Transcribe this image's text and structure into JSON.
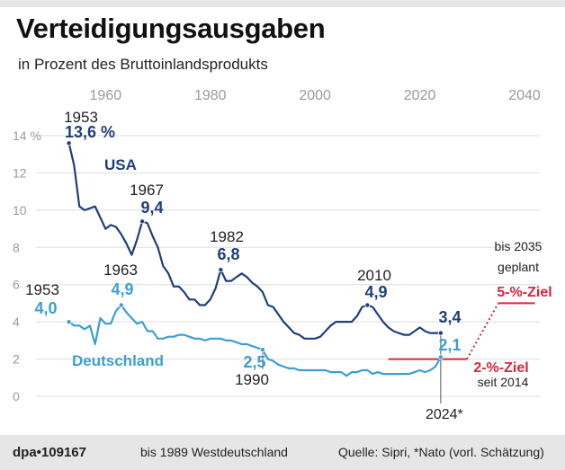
{
  "header": {
    "title": "Verteidigungsausgaben",
    "subtitle": "in Prozent des Bruttoinlandsprodukts"
  },
  "footer": {
    "brand": "dpa•109167",
    "note": "bis 1989 Westdeutschland",
    "source": "Quelle: Sipri, *Nato (vorl. Schätzung)"
  },
  "colors": {
    "usa": "#1f3f7a",
    "germany": "#3b9fd4",
    "target": "#d7263d",
    "axis": "#9a9a9a",
    "grid": "#dddddd"
  },
  "chart_data": {
    "type": "line",
    "xlim": [
      1945,
      2040
    ],
    "ylim": [
      0,
      14
    ],
    "x_ticks": [
      1960,
      1980,
      2000,
      2020,
      2040
    ],
    "y_ticks": [
      {
        "value": 0,
        "label": "0"
      },
      {
        "value": 2,
        "label": "2"
      },
      {
        "value": 4,
        "label": "4"
      },
      {
        "value": 6,
        "label": "6"
      },
      {
        "value": 8,
        "label": "8"
      },
      {
        "value": 10,
        "label": "10"
      },
      {
        "value": 12,
        "label": "12"
      },
      {
        "value": 14,
        "label": "14 %"
      }
    ],
    "grid": true,
    "series": [
      {
        "name": "USA",
        "color": "#1f3f7a",
        "points": [
          [
            1953,
            13.6
          ],
          [
            1954,
            12.4
          ],
          [
            1955,
            10.2
          ],
          [
            1956,
            10.0
          ],
          [
            1957,
            10.1
          ],
          [
            1958,
            10.2
          ],
          [
            1959,
            9.6
          ],
          [
            1960,
            9.0
          ],
          [
            1961,
            9.2
          ],
          [
            1962,
            9.1
          ],
          [
            1963,
            8.7
          ],
          [
            1964,
            8.2
          ],
          [
            1965,
            7.6
          ],
          [
            1966,
            8.4
          ],
          [
            1967,
            9.4
          ],
          [
            1968,
            9.3
          ],
          [
            1969,
            8.6
          ],
          [
            1970,
            8.0
          ],
          [
            1971,
            7.0
          ],
          [
            1972,
            6.6
          ],
          [
            1973,
            5.9
          ],
          [
            1974,
            5.9
          ],
          [
            1975,
            5.6
          ],
          [
            1976,
            5.2
          ],
          [
            1977,
            5.2
          ],
          [
            1978,
            4.9
          ],
          [
            1979,
            4.9
          ],
          [
            1980,
            5.2
          ],
          [
            1981,
            5.8
          ],
          [
            1982,
            6.8
          ],
          [
            1983,
            6.2
          ],
          [
            1984,
            6.2
          ],
          [
            1985,
            6.4
          ],
          [
            1986,
            6.6
          ],
          [
            1987,
            6.4
          ],
          [
            1988,
            6.1
          ],
          [
            1989,
            5.9
          ],
          [
            1990,
            5.6
          ],
          [
            1991,
            4.9
          ],
          [
            1992,
            4.8
          ],
          [
            1993,
            4.4
          ],
          [
            1994,
            4.0
          ],
          [
            1995,
            3.7
          ],
          [
            1996,
            3.4
          ],
          [
            1997,
            3.3
          ],
          [
            1998,
            3.1
          ],
          [
            1999,
            3.1
          ],
          [
            2000,
            3.1
          ],
          [
            2001,
            3.2
          ],
          [
            2002,
            3.5
          ],
          [
            2003,
            3.8
          ],
          [
            2004,
            4.0
          ],
          [
            2005,
            4.0
          ],
          [
            2006,
            4.0
          ],
          [
            2007,
            4.0
          ],
          [
            2008,
            4.3
          ],
          [
            2009,
            4.8
          ],
          [
            2010,
            4.9
          ],
          [
            2011,
            4.8
          ],
          [
            2012,
            4.4
          ],
          [
            2013,
            4.0
          ],
          [
            2014,
            3.7
          ],
          [
            2015,
            3.5
          ],
          [
            2016,
            3.4
          ],
          [
            2017,
            3.3
          ],
          [
            2018,
            3.3
          ],
          [
            2019,
            3.5
          ],
          [
            2020,
            3.7
          ],
          [
            2021,
            3.5
          ],
          [
            2022,
            3.4
          ],
          [
            2023,
            3.4
          ],
          [
            2024,
            3.4
          ]
        ]
      },
      {
        "name": "Deutschland",
        "color": "#3b9fd4",
        "points": [
          [
            1953,
            4.0
          ],
          [
            1954,
            3.8
          ],
          [
            1955,
            3.8
          ],
          [
            1956,
            3.6
          ],
          [
            1957,
            3.8
          ],
          [
            1958,
            2.8
          ],
          [
            1959,
            4.2
          ],
          [
            1960,
            3.9
          ],
          [
            1961,
            3.9
          ],
          [
            1962,
            4.6
          ],
          [
            1963,
            4.9
          ],
          [
            1964,
            4.5
          ],
          [
            1965,
            4.2
          ],
          [
            1966,
            3.9
          ],
          [
            1967,
            4.0
          ],
          [
            1968,
            3.5
          ],
          [
            1969,
            3.5
          ],
          [
            1970,
            3.1
          ],
          [
            1971,
            3.1
          ],
          [
            1972,
            3.2
          ],
          [
            1973,
            3.2
          ],
          [
            1974,
            3.3
          ],
          [
            1975,
            3.3
          ],
          [
            1976,
            3.2
          ],
          [
            1977,
            3.1
          ],
          [
            1978,
            3.1
          ],
          [
            1979,
            3.0
          ],
          [
            1980,
            3.1
          ],
          [
            1981,
            3.1
          ],
          [
            1982,
            3.1
          ],
          [
            1983,
            3.0
          ],
          [
            1984,
            3.0
          ],
          [
            1985,
            2.9
          ],
          [
            1986,
            2.8
          ],
          [
            1987,
            2.8
          ],
          [
            1988,
            2.7
          ],
          [
            1989,
            2.6
          ],
          [
            1990,
            2.5
          ],
          [
            1991,
            2.0
          ],
          [
            1992,
            1.9
          ],
          [
            1993,
            1.7
          ],
          [
            1994,
            1.6
          ],
          [
            1995,
            1.5
          ],
          [
            1996,
            1.5
          ],
          [
            1997,
            1.4
          ],
          [
            1998,
            1.4
          ],
          [
            1999,
            1.4
          ],
          [
            2000,
            1.4
          ],
          [
            2001,
            1.4
          ],
          [
            2002,
            1.4
          ],
          [
            2003,
            1.3
          ],
          [
            2004,
            1.3
          ],
          [
            2005,
            1.3
          ],
          [
            2006,
            1.1
          ],
          [
            2007,
            1.3
          ],
          [
            2008,
            1.3
          ],
          [
            2009,
            1.4
          ],
          [
            2010,
            1.4
          ],
          [
            2011,
            1.2
          ],
          [
            2012,
            1.3
          ],
          [
            2013,
            1.2
          ],
          [
            2014,
            1.2
          ],
          [
            2015,
            1.2
          ],
          [
            2016,
            1.2
          ],
          [
            2017,
            1.2
          ],
          [
            2018,
            1.2
          ],
          [
            2019,
            1.3
          ],
          [
            2020,
            1.4
          ],
          [
            2021,
            1.3
          ],
          [
            2022,
            1.4
          ],
          [
            2023,
            1.6
          ],
          [
            2024,
            2.1
          ]
        ]
      }
    ],
    "series_labels": {
      "usa": "USA",
      "germany": "Deutschland"
    },
    "annotations": [
      {
        "series": "usa",
        "year_label": "1953",
        "value_label": "13,6 %",
        "x": 1953,
        "y": 13.6
      },
      {
        "series": "usa",
        "year_label": "1967",
        "value_label": "9,4",
        "x": 1967,
        "y": 9.4
      },
      {
        "series": "usa",
        "year_label": "1982",
        "value_label": "6,8",
        "x": 1982,
        "y": 6.8
      },
      {
        "series": "usa",
        "year_label": "2010",
        "value_label": "4,9",
        "x": 2010,
        "y": 4.9
      },
      {
        "series": "usa",
        "year_label": "",
        "value_label": "3,4",
        "x": 2024,
        "y": 3.4
      },
      {
        "series": "germany",
        "year_label": "1953",
        "value_label": "4,0",
        "x": 1953,
        "y": 4.0
      },
      {
        "series": "germany",
        "year_label": "1963",
        "value_label": "4,9",
        "x": 1963,
        "y": 4.9
      },
      {
        "series": "germany",
        "year_label": "1990",
        "value_label": "2,5",
        "x": 1990,
        "y": 2.5
      },
      {
        "series": "germany",
        "year_label": "",
        "value_label": "2,1",
        "x": 2024,
        "y": 2.1
      }
    ],
    "current_year_label": "2024*",
    "targets": [
      {
        "name": "2-%-Ziel",
        "note": "seit 2014",
        "value": 2,
        "x_from": 2014,
        "x_to": 2029
      },
      {
        "name": "5-%-Ziel",
        "note": "bis 2035 geplant",
        "note_lines": [
          "bis 2035",
          "geplant"
        ],
        "value": 5,
        "x_from": 2035,
        "x_to": 2042
      }
    ]
  }
}
